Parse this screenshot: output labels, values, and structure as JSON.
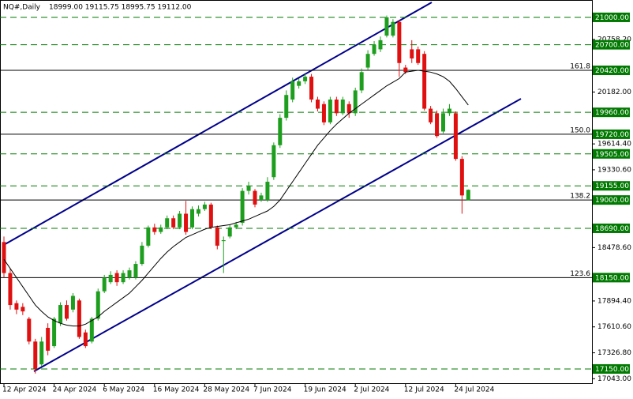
{
  "chart_data": {
    "type": "candlestick",
    "header": {
      "symbol": "NQ#,Daily",
      "ohlc": "18999.00 19115.75 18995.75 19112.00"
    },
    "categories": [
      "12 Apr 2024",
      null,
      null,
      null,
      null,
      null,
      null,
      null,
      "24 Apr 2024",
      null,
      null,
      null,
      null,
      null,
      null,
      null,
      "6 May 2024",
      null,
      null,
      null,
      null,
      null,
      null,
      null,
      "16 May 2024",
      null,
      null,
      null,
      null,
      null,
      null,
      null,
      "28 May 2024",
      null,
      null,
      null,
      null,
      null,
      null,
      null,
      "7 Jun 2024",
      null,
      null,
      null,
      null,
      null,
      null,
      null,
      "19 Jun 2024",
      null,
      null,
      null,
      null,
      null,
      null,
      null,
      "2 Jul 2024",
      null,
      null,
      null,
      null,
      null,
      null,
      null,
      "12 Jul 2024",
      null,
      null,
      null,
      null,
      null,
      null,
      null,
      "24 Jul 2024",
      null,
      null
    ],
    "open": [
      18540,
      18200,
      17870,
      17830,
      17700,
      17450,
      17200,
      17600,
      17400,
      17650,
      17850,
      17800,
      17900,
      17550,
      17450,
      17700,
      18000,
      18100,
      18200,
      18100,
      18150,
      18150,
      18300,
      18500,
      18700,
      18650,
      18700,
      18800,
      18700,
      18850,
      18700,
      18850,
      18900,
      18950,
      18700,
      18550,
      18600,
      18700,
      18750,
      19100,
      19100,
      19000,
      19000,
      19250,
      19600,
      19900,
      20100,
      20250,
      20300,
      20350,
      20100,
      20050,
      19850,
      20100,
      19950,
      20050,
      19950,
      20200,
      20450,
      20600,
      20650,
      20800,
      20800,
      20950,
      20450,
      20650,
      20650,
      20600,
      20000,
      19950,
      19750,
      19950,
      19950,
      19450,
      18999
    ],
    "high": [
      18600,
      18250,
      17900,
      17870,
      17720,
      17480,
      17500,
      17650,
      17720,
      17880,
      17900,
      17980,
      17920,
      17580,
      17720,
      18030,
      18180,
      18220,
      18230,
      18230,
      18260,
      18330,
      18540,
      18720,
      18740,
      18730,
      18830,
      18830,
      18880,
      18990,
      18930,
      18940,
      18980,
      18970,
      18720,
      18600,
      18730,
      18760,
      19130,
      19200,
      19120,
      19080,
      19250,
      19630,
      19940,
      20200,
      20340,
      20330,
      20380,
      20380,
      20130,
      20080,
      20130,
      20130,
      20130,
      20080,
      20230,
      20440,
      20640,
      20740,
      20790,
      21020,
      20980,
      20970,
      20480,
      20750,
      20680,
      20630,
      20030,
      19980,
      20000,
      20050,
      19970,
      19480,
      19115.75
    ],
    "low": [
      18150,
      17800,
      17750,
      17740,
      17420,
      17100,
      17180,
      17300,
      17380,
      17620,
      17680,
      17770,
      17480,
      17380,
      17430,
      17680,
      17980,
      18080,
      18060,
      18080,
      18130,
      18130,
      18280,
      18480,
      18620,
      18630,
      18680,
      18680,
      18680,
      18620,
      18680,
      18820,
      18880,
      18680,
      18460,
      18200,
      18580,
      18680,
      18720,
      19060,
      18920,
      18980,
      18980,
      19220,
      19570,
      19870,
      20070,
      20220,
      20270,
      20070,
      19970,
      19820,
      19830,
      19920,
      19930,
      19900,
      19920,
      20170,
      20420,
      20580,
      20620,
      20780,
      20780,
      20350,
      20380,
      20500,
      20480,
      19980,
      19830,
      19680,
      19730,
      19920,
      19430,
      18850,
      18995.75
    ],
    "close": [
      18200,
      17850,
      17800,
      17780,
      17450,
      17150,
      17450,
      17350,
      17700,
      17850,
      17700,
      17950,
      17500,
      17400,
      17700,
      18000,
      18150,
      18180,
      18100,
      18200,
      18230,
      18300,
      18500,
      18700,
      18650,
      18700,
      18800,
      18700,
      18850,
      18650,
      18900,
      18900,
      18950,
      18700,
      18500,
      18560,
      18700,
      18730,
      19100,
      19150,
      18950,
      19050,
      19200,
      19600,
      19900,
      20150,
      20300,
      20300,
      20350,
      20100,
      20000,
      19850,
      20100,
      19950,
      20100,
      19950,
      20200,
      20400,
      20600,
      20700,
      20750,
      21000,
      20950,
      20500,
      20400,
      20550,
      20500,
      20000,
      19850,
      19700,
      19950,
      20000,
      19450,
      19050,
      19112
    ],
    "ma": [
      18350,
      18250,
      18150,
      18050,
      17950,
      17850,
      17780,
      17720,
      17680,
      17650,
      17630,
      17620,
      17620,
      17640,
      17680,
      17720,
      17780,
      17830,
      17880,
      17930,
      17980,
      18050,
      18120,
      18200,
      18280,
      18360,
      18430,
      18490,
      18540,
      18590,
      18620,
      18650,
      18680,
      18700,
      18710,
      18720,
      18730,
      18750,
      18770,
      18790,
      18820,
      18850,
      18880,
      18930,
      19000,
      19100,
      19200,
      19300,
      19400,
      19500,
      19600,
      19680,
      19760,
      19830,
      19890,
      19950,
      20000,
      20050,
      20100,
      20150,
      20200,
      20250,
      20290,
      20330,
      20400,
      20410,
      20420,
      20410,
      20400,
      20380,
      20350,
      20300,
      20220,
      20130,
      20040
    ],
    "up_color": "#1e9e1e",
    "down_color": "#e01010",
    "ma_color": "#000000",
    "ylim": [
      16994,
      21190
    ],
    "yticks": [
      {
        "value": 20758.2,
        "label": "20758.20"
      },
      {
        "value": 20182,
        "label": "20182.00"
      },
      {
        "value": 19614.4,
        "label": "19614.40"
      },
      {
        "value": 19330.6,
        "label": "19330.60"
      },
      {
        "value": 18478.6,
        "label": "18478.60"
      },
      {
        "value": 17894.4,
        "label": "17894.40"
      },
      {
        "value": 17610.6,
        "label": "17610.60"
      },
      {
        "value": 17326.8,
        "label": "17326.80"
      },
      {
        "value": 17043,
        "label": "17043.00"
      }
    ],
    "levels": [
      {
        "value": 21000,
        "label": "21000.00",
        "style": "dashed"
      },
      {
        "value": 20700,
        "label": "20700.00",
        "style": "dashed"
      },
      {
        "value": 20420,
        "label": "20420.00",
        "style": "solid",
        "fib": "161.8"
      },
      {
        "value": 19960,
        "label": "19960.00",
        "style": "dashed"
      },
      {
        "value": 19720,
        "label": "19720.00",
        "style": "solid",
        "fib": "150.0"
      },
      {
        "value": 19505,
        "label": "19505.00",
        "style": "dashed"
      },
      {
        "value": 19155,
        "label": "19155.00",
        "style": "dashed"
      },
      {
        "value": 19000,
        "label": "19000.00",
        "style": "solid",
        "fib": "138.2"
      },
      {
        "value": 18690,
        "label": "18690.00",
        "style": "dashed"
      },
      {
        "value": 18150,
        "label": "18150.00",
        "style": "solid",
        "fib": "123.6"
      },
      {
        "value": 17150,
        "label": "17150.00",
        "style": "dashed"
      }
    ],
    "level_color": "#007a00",
    "fib_color": "#000000"
  }
}
